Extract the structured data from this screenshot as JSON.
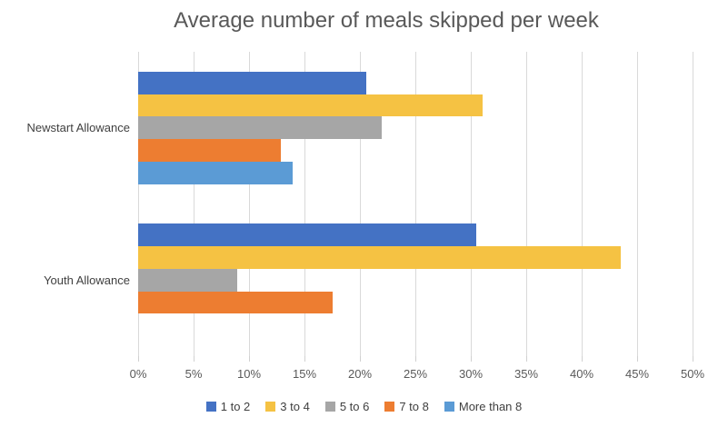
{
  "chart_data": {
    "type": "bar",
    "orientation": "horizontal",
    "title": "Average number of meals skipped per week",
    "value_unit": "%",
    "categories": [
      "Newstart Allowance",
      "Youth Allowance"
    ],
    "series": [
      {
        "name": "1 to 2",
        "color": "#4472C4",
        "values": [
          20.6,
          30.5
        ]
      },
      {
        "name": "3 to 4",
        "color": "#F5C243",
        "values": [
          31.1,
          43.5
        ]
      },
      {
        "name": "5 to 6",
        "color": "#A6A6A6",
        "values": [
          22.0,
          8.9
        ]
      },
      {
        "name": "7 to 8",
        "color": "#ED7D31",
        "values": [
          12.9,
          17.5
        ]
      },
      {
        "name": "More than 8",
        "color": "#5B9BD5",
        "values": [
          13.9,
          0
        ]
      }
    ],
    "xlim": [
      0,
      50
    ],
    "x_tick_labels": [
      "0%",
      "5%",
      "10%",
      "15%",
      "20%",
      "25%",
      "30%",
      "35%",
      "40%",
      "45%",
      "50%"
    ],
    "grid": true,
    "legend_position": "bottom",
    "colors": {
      "background": "#ffffff",
      "gridline": "#d9d9d9",
      "title_text": "#595959",
      "axis_text": "#595959",
      "category_text": "#404040",
      "legend_text": "#404040"
    }
  }
}
